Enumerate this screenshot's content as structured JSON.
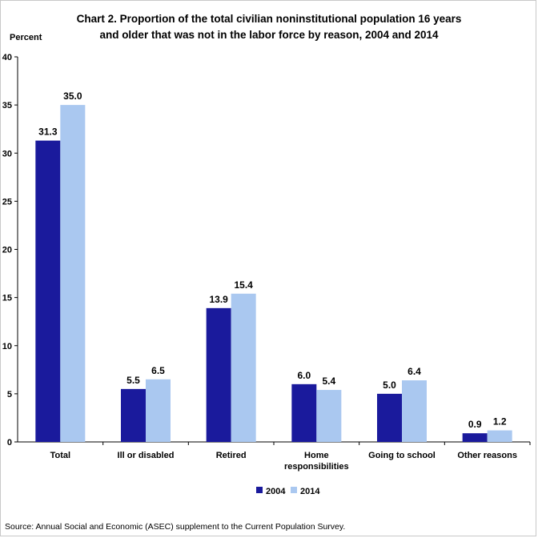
{
  "chart_data": {
    "type": "bar",
    "title_line1": "Chart 2.  Proportion of the total civilian noninstitutional population 16 years",
    "title_line2": "and older that was not in the labor force by reason, 2004 and 2014",
    "ylabel": "Percent",
    "ylim": [
      0,
      40
    ],
    "yticks": [
      "0",
      "5",
      "10",
      "15",
      "20",
      "25",
      "30",
      "35",
      "40"
    ],
    "categories": [
      [
        "Total"
      ],
      [
        "Ill or disabled"
      ],
      [
        "Retired"
      ],
      [
        "Home",
        "responsibilities"
      ],
      [
        "Going to school"
      ],
      [
        "Other reasons"
      ]
    ],
    "series": [
      {
        "name": "2004",
        "color": "#1a1a9c",
        "values": [
          31.3,
          5.5,
          13.9,
          6.0,
          5.0,
          0.9
        ],
        "labels": [
          "31.3",
          "5.5",
          "13.9",
          "6.0",
          "5.0",
          "0.9"
        ]
      },
      {
        "name": "2014",
        "color": "#aac8f0",
        "values": [
          35.0,
          6.5,
          15.4,
          5.4,
          6.4,
          1.2
        ],
        "labels": [
          "35.0",
          "6.5",
          "15.4",
          "5.4",
          "6.4",
          "1.2"
        ]
      }
    ],
    "grid": false,
    "legend": "bottom-center",
    "source": "Source: Annual Social and Economic (ASEC) supplement to the Current Population Survey."
  }
}
